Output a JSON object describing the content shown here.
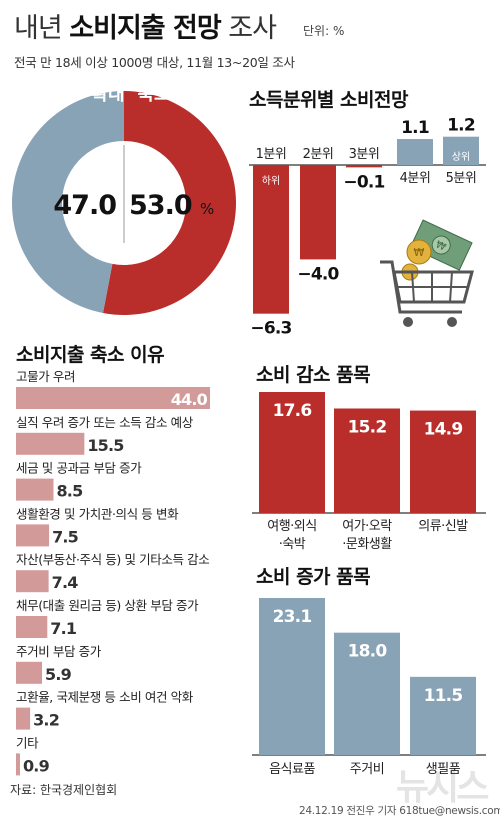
{
  "header": {
    "title_part1": "내년 ",
    "title_part2": "소비지출 전망",
    "title_part3": " 조사",
    "unit": "단위: %",
    "subtitle": "전국 만 18세 이상 1000명 대상, 11월 13~20일 조사"
  },
  "colors": {
    "red": "#b92d2b",
    "blue": "#89a3b6",
    "pink": "#d39a9a",
    "gray": "#cfcfcf"
  },
  "chart_data": [
    {
      "type": "pie",
      "categories": [
        "확대",
        "축소"
      ],
      "values": [
        47.0,
        53.0
      ],
      "value_labels": [
        "47.0",
        "53.0"
      ],
      "unit_label": "%"
    },
    {
      "type": "bar",
      "title": "소득분위별 소비전망",
      "categories": [
        "1분위",
        "2분위",
        "3분위",
        "4분위",
        "5분위"
      ],
      "inner_labels": [
        "하위",
        "",
        "",
        "",
        "상위"
      ],
      "values": [
        -6.3,
        -4.0,
        -0.1,
        1.1,
        1.2
      ],
      "value_labels": [
        "−6.3",
        "−4.0",
        "−0.1",
        "1.1",
        "1.2"
      ]
    },
    {
      "type": "bar",
      "orientation": "horizontal",
      "title": "소비지출 축소 이유",
      "categories": [
        "고물가 우려",
        "실직 우려 증가 또는 소득 감소 예상",
        "세금 및 공과금 부담 증가",
        "생활환경 및 가치관·의식 등 변화",
        "자산(부동산·주식 등) 및 기타소득 감소",
        "채무(대출 원리금 등) 상환 부담 증가",
        "주거비 부담 증가",
        "고환율, 국제분쟁 등 소비 여건 악화",
        "기타"
      ],
      "values": [
        44.0,
        15.5,
        8.5,
        7.5,
        7.4,
        7.1,
        5.9,
        3.2,
        0.9
      ],
      "value_labels": [
        "44.0",
        "15.5",
        "8.5",
        "7.5",
        "7.4",
        "7.1",
        "5.9",
        "3.2",
        "0.9"
      ]
    },
    {
      "type": "bar",
      "title": "소비 감소 품목",
      "categories": [
        "여행·외식·숙박",
        "여가·오락·문화생활",
        "의류·신발"
      ],
      "category_lines": [
        [
          "여행·외식",
          "·숙박"
        ],
        [
          "여가·오락",
          "·문화생활"
        ],
        [
          "의류·신발"
        ]
      ],
      "values": [
        17.6,
        15.2,
        14.9
      ],
      "value_labels": [
        "17.6",
        "15.2",
        "14.9"
      ]
    },
    {
      "type": "bar",
      "title": "소비 증가 품목",
      "categories": [
        "음식료품",
        "주거비",
        "생필품"
      ],
      "values": [
        23.1,
        18.0,
        11.5
      ],
      "value_labels": [
        "23.1",
        "18.0",
        "11.5"
      ]
    }
  ],
  "footer": {
    "source": "자료: 한국경제인협회",
    "credit": "24.12.19 전진우 기자 618tue@newsis.com",
    "watermark": "뉴시스"
  }
}
